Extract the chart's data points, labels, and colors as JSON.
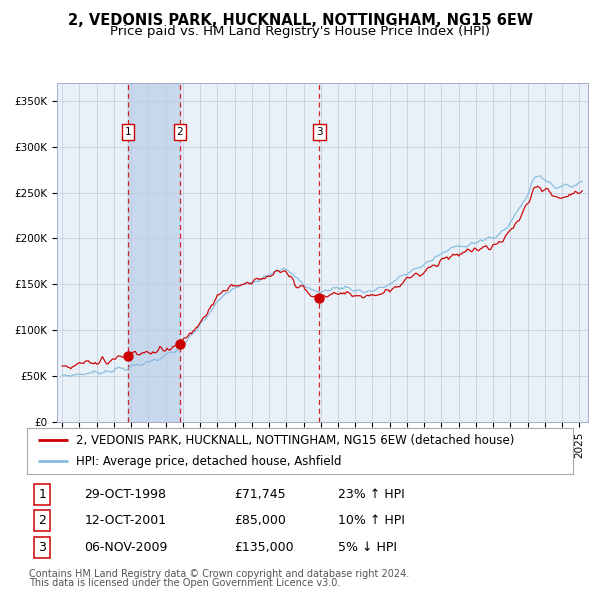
{
  "title1": "2, VEDONIS PARK, HUCKNALL, NOTTINGHAM, NG15 6EW",
  "title2": "Price paid vs. HM Land Registry's House Price Index (HPI)",
  "ylim": [
    0,
    370000
  ],
  "yticks": [
    0,
    50000,
    100000,
    150000,
    200000,
    250000,
    300000,
    350000
  ],
  "ytick_labels": [
    "£0",
    "£50K",
    "£100K",
    "£150K",
    "£200K",
    "£250K",
    "£300K",
    "£350K"
  ],
  "sale_prices": [
    71745,
    85000,
    135000
  ],
  "sale_labels": [
    "1",
    "2",
    "3"
  ],
  "sale_pct": [
    "23% ↑ HPI",
    "10% ↑ HPI",
    "5% ↓ HPI"
  ],
  "sale_dates_str": [
    "29-OCT-1998",
    "12-OCT-2001",
    "06-NOV-2009"
  ],
  "legend_line1": "2, VEDONIS PARK, HUCKNALL, NOTTINGHAM, NG15 6EW (detached house)",
  "legend_line2": "HPI: Average price, detached house, Ashfield",
  "footer1": "Contains HM Land Registry data © Crown copyright and database right 2024.",
  "footer2": "This data is licensed under the Open Government Licence v3.0.",
  "price_line_color": "#cc0000",
  "hpi_line_color": "#88bbdd",
  "background_color": "#ffffff",
  "chart_bg_color": "#e8f0f8",
  "shade_color": "#c8d8ec",
  "grid_color": "#c0c8d8",
  "sale_marker_color": "#cc0000",
  "dashed_line_color": "#cc0000",
  "title_fontsize": 10.5,
  "subtitle_fontsize": 9.5,
  "tick_fontsize": 7.5,
  "legend_fontsize": 8.5,
  "table_fontsize": 9,
  "footer_fontsize": 7,
  "xlim_start": 1994.7,
  "xlim_end": 2025.5
}
